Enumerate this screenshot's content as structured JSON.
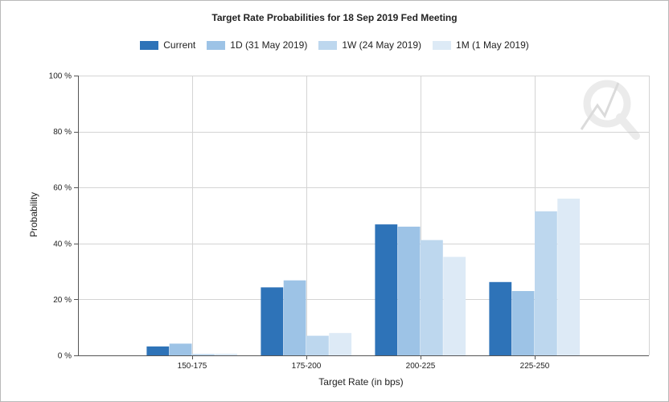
{
  "chart_data": {
    "type": "bar",
    "title": "Target Rate Probabilities for 18 Sep 2019 Fed Meeting",
    "xlabel": "Target Rate (in bps)",
    "ylabel": "Probability",
    "categories": [
      "150-175",
      "175-200",
      "200-225",
      "225-250"
    ],
    "y_ticks": [
      "0 %",
      "20 %",
      "40 %",
      "60 %",
      "80 %",
      "100 %"
    ],
    "ylim": [
      0,
      100
    ],
    "grid": true,
    "legend_position": "top-center",
    "series": [
      {
        "name": "Current",
        "color": "#2e73b8",
        "values": [
          3.2,
          24.3,
          46.8,
          26.2
        ]
      },
      {
        "name": "1D (31 May 2019)",
        "color": "#9dc3e6",
        "values": [
          4.2,
          26.8,
          46.0,
          23.0
        ]
      },
      {
        "name": "1W (24 May 2019)",
        "color": "#bdd7ee",
        "values": [
          0.5,
          7.0,
          41.2,
          51.5
        ]
      },
      {
        "name": "1M (1 May 2019)",
        "color": "#ddeaf6",
        "values": [
          0.6,
          8.0,
          35.2,
          56.0
        ]
      }
    ]
  },
  "watermark": {
    "icon": "q-logo-watermark-icon"
  }
}
